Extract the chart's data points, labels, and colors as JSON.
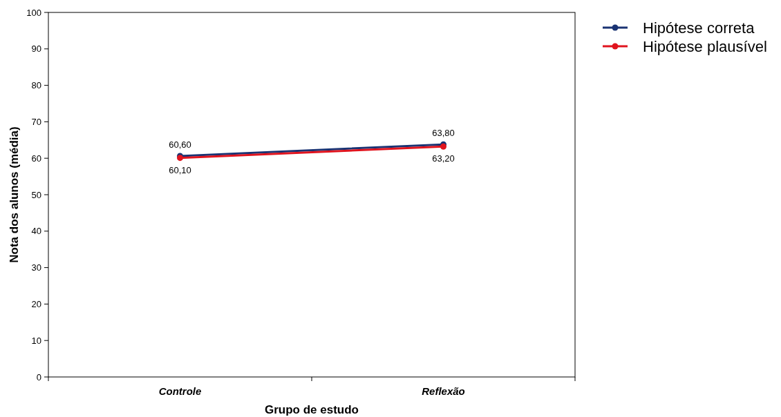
{
  "chart_data": {
    "type": "line",
    "xlabel": "Grupo de estudo",
    "ylabel": "Nota dos alunos (média)",
    "categories": [
      "Controle",
      "Reflexão"
    ],
    "series": [
      {
        "name": "Hipótese correta",
        "color": "#1a3373",
        "values": [
          60.6,
          63.8
        ],
        "value_labels": [
          "60,60",
          "63,80"
        ]
      },
      {
        "name": "Hipótese plausível",
        "color": "#e0141e",
        "values": [
          60.1,
          63.2
        ],
        "value_labels": [
          "60,10",
          "63,20"
        ]
      }
    ],
    "ylim": [
      0,
      100
    ],
    "yticks": [
      0,
      10,
      20,
      30,
      40,
      50,
      60,
      70,
      80,
      90,
      100
    ],
    "grid": false,
    "legend": "top right",
    "marker": "circle",
    "line_style": "solid"
  }
}
